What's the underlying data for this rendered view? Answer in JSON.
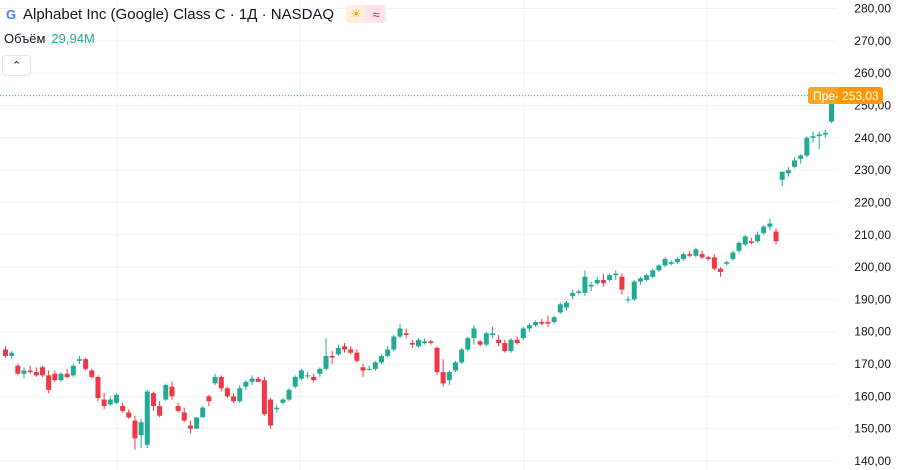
{
  "header": {
    "symbol_title": "Alphabet Inc (Google) Class C · 1Д · NASDAQ",
    "logo_letter": "G",
    "session_icon": "sun-icon",
    "mode_icon": "approx-icon"
  },
  "volume": {
    "label": "Объём",
    "value": "29,94M"
  },
  "collapse": {
    "icon": "chevron-up-icon"
  },
  "price_label": {
    "prefix": "Пре-",
    "value": "253,03"
  },
  "colors": {
    "up": "#22ab94",
    "down": "#f23645",
    "pre_tag": "#f5a623",
    "last_tag": "#ff9800",
    "grid": "#f0f3fa"
  },
  "chart_data": {
    "type": "candlestick",
    "interval": "1D",
    "ylim": [
      140,
      280
    ],
    "yticks": [
      "280,00",
      "270,00",
      "260,00",
      "250,00",
      "240,00",
      "230,00",
      "220,00",
      "210,00",
      "200,00",
      "190,00",
      "180,00",
      "170,00",
      "160,00",
      "150,00",
      "140,00"
    ],
    "last_price": 253.03,
    "candles": [
      [
        174.5,
        175.5,
        172,
        172.5
      ],
      [
        172.5,
        174,
        171.5,
        173.5
      ],
      [
        169.5,
        170,
        166.5,
        167
      ],
      [
        167,
        169,
        165.5,
        168
      ],
      [
        168,
        169.5,
        167,
        167.5
      ],
      [
        167.5,
        169,
        166,
        166.5
      ],
      [
        169,
        169.5,
        166,
        166.5
      ],
      [
        166.5,
        168,
        161,
        162
      ],
      [
        167,
        168,
        164.5,
        165
      ],
      [
        165,
        167.5,
        164.5,
        167
      ],
      [
        167,
        168.5,
        165.5,
        166
      ],
      [
        166.5,
        170,
        166,
        169.5
      ],
      [
        171,
        172.5,
        170,
        171.5
      ],
      [
        171.5,
        172,
        168,
        168.5
      ],
      [
        168,
        168.5,
        165.5,
        166
      ],
      [
        166,
        166.5,
        158.5,
        159.5
      ],
      [
        159,
        161,
        156,
        157
      ],
      [
        157.5,
        160,
        157,
        159
      ],
      [
        158,
        161,
        157.5,
        160.5
      ],
      [
        157,
        158,
        155,
        155.5
      ],
      [
        155,
        156,
        153,
        153.5
      ],
      [
        152.5,
        154,
        143.5,
        147
      ],
      [
        148,
        153,
        144,
        152
      ],
      [
        145,
        162,
        144,
        161.5
      ],
      [
        161,
        161.5,
        155.5,
        157
      ],
      [
        157,
        158.5,
        153.5,
        154
      ],
      [
        159,
        164,
        158.5,
        163.5
      ],
      [
        163,
        164.5,
        159,
        160
      ],
      [
        157,
        158,
        155,
        155.5
      ],
      [
        155,
        156.5,
        152,
        152.5
      ],
      [
        151,
        152.5,
        148.5,
        150
      ],
      [
        150,
        153.5,
        150,
        153.5
      ],
      [
        153.5,
        157,
        153.5,
        156.5
      ],
      [
        160,
        160.5,
        157,
        158.5
      ],
      [
        164,
        167,
        163.5,
        166
      ],
      [
        166,
        166.5,
        161.5,
        162.5
      ],
      [
        162.5,
        163,
        159.5,
        160
      ],
      [
        160,
        161,
        158,
        158.5
      ],
      [
        158.5,
        163.5,
        158,
        162.5
      ],
      [
        163,
        165,
        162,
        164.5
      ],
      [
        164.5,
        166.5,
        163.5,
        165.5
      ],
      [
        165.5,
        166,
        164.5,
        164.5
      ],
      [
        165,
        166,
        154,
        154.5
      ],
      [
        159,
        159.5,
        150,
        151
      ],
      [
        156,
        157.5,
        155,
        156.5
      ],
      [
        158,
        159.5,
        157.5,
        159
      ],
      [
        159,
        162.5,
        158.5,
        162
      ],
      [
        163,
        166.5,
        162.5,
        166
      ],
      [
        165.5,
        168.5,
        165,
        168
      ],
      [
        166.5,
        167.5,
        165.5,
        166.5
      ],
      [
        166,
        167,
        164.5,
        165
      ],
      [
        167,
        169,
        166,
        168.5
      ],
      [
        168.5,
        178,
        168,
        172.5
      ],
      [
        172.5,
        174,
        170,
        172
      ],
      [
        173,
        176,
        172.5,
        175
      ],
      [
        175.5,
        176.5,
        173.5,
        174.5
      ],
      [
        174.5,
        175.5,
        173,
        173.5
      ],
      [
        173.5,
        174.5,
        170.5,
        171
      ],
      [
        169,
        170,
        166,
        168
      ],
      [
        168.5,
        169.5,
        168,
        168.5
      ],
      [
        168.5,
        171,
        168,
        170.5
      ],
      [
        170.5,
        173,
        170,
        172.5
      ],
      [
        172.5,
        175.5,
        172,
        174.5
      ],
      [
        174.5,
        179,
        174,
        178.5
      ],
      [
        178.5,
        182.5,
        178,
        181
      ],
      [
        179.5,
        181,
        178,
        179
      ],
      [
        176.5,
        177.5,
        175,
        176
      ],
      [
        175.5,
        178,
        175,
        177.5
      ],
      [
        176.5,
        178,
        176,
        177
      ],
      [
        177,
        177.5,
        176,
        176.5
      ],
      [
        175,
        175.5,
        166.5,
        167.5
      ],
      [
        167.5,
        171.5,
        163,
        164
      ],
      [
        165,
        168,
        163.5,
        167.5
      ],
      [
        168,
        171,
        167.5,
        170.5
      ],
      [
        170.5,
        175,
        170,
        174.5
      ],
      [
        174.5,
        178.5,
        174,
        178
      ],
      [
        178,
        182,
        176,
        181
      ],
      [
        177,
        177.5,
        175.5,
        176
      ],
      [
        176,
        180,
        175.5,
        179.5
      ],
      [
        179,
        181.5,
        178,
        179.5
      ],
      [
        177.5,
        179,
        175.5,
        176.5
      ],
      [
        176.5,
        177.5,
        173.5,
        174
      ],
      [
        174,
        178,
        173.5,
        177.5
      ],
      [
        177.5,
        178.5,
        176,
        176.5
      ],
      [
        178,
        181.5,
        177.5,
        181
      ],
      [
        181,
        182.5,
        180,
        182
      ],
      [
        182,
        183.5,
        181.5,
        183
      ],
      [
        183,
        184,
        182,
        182.5
      ],
      [
        183,
        185,
        181.5,
        182.5
      ],
      [
        183,
        185,
        182.5,
        184.5
      ],
      [
        186,
        189,
        185.5,
        188.5
      ],
      [
        187.5,
        189.5,
        186.5,
        189
      ],
      [
        191,
        193,
        190,
        192
      ],
      [
        192,
        193,
        191.5,
        192.5
      ],
      [
        192,
        199,
        191,
        197
      ],
      [
        194,
        195.5,
        192.5,
        194.5
      ],
      [
        195,
        197,
        194.5,
        196
      ],
      [
        196,
        198,
        194,
        195
      ],
      [
        196,
        198,
        195.5,
        197.5
      ],
      [
        197.5,
        199,
        196,
        198
      ],
      [
        197,
        198,
        191.5,
        193
      ],
      [
        190,
        191,
        189,
        190
      ],
      [
        190,
        196,
        189.5,
        195.5
      ],
      [
        195.5,
        197,
        194.5,
        196.5
      ],
      [
        196,
        198,
        195.5,
        197.5
      ],
      [
        197,
        199.5,
        196.5,
        199
      ],
      [
        199,
        201,
        198.5,
        200.5
      ],
      [
        200.5,
        203,
        200,
        202.5
      ],
      [
        201,
        202,
        200.5,
        201.5
      ],
      [
        201.5,
        203,
        201,
        202.5
      ],
      [
        202.5,
        204.5,
        202,
        204
      ],
      [
        204,
        205,
        203,
        203.5
      ],
      [
        203.5,
        206,
        203,
        205.5
      ],
      [
        204,
        205,
        202.5,
        203
      ],
      [
        203,
        203.5,
        202,
        202.5
      ],
      [
        203,
        204,
        199,
        199.5
      ],
      [
        199.5,
        200,
        197,
        198.5
      ],
      [
        201,
        202,
        200.5,
        201.5
      ],
      [
        202.5,
        205,
        202,
        204.5
      ],
      [
        205,
        208,
        204.5,
        207.5
      ],
      [
        207,
        210,
        206.5,
        209.5
      ],
      [
        208,
        209,
        207,
        207.5
      ],
      [
        208,
        211,
        207.5,
        210
      ],
      [
        210.5,
        213,
        210,
        212.5
      ],
      [
        212.5,
        215,
        211.5,
        213.5
      ],
      [
        211,
        212,
        207,
        208
      ],
      [
        227,
        229,
        225,
        229.5
      ],
      [
        229,
        231,
        228,
        230
      ],
      [
        231,
        234,
        230.5,
        233
      ],
      [
        233.5,
        235,
        232,
        234.5
      ],
      [
        234.5,
        240.5,
        234,
        240
      ],
      [
        240,
        242,
        238.5,
        240.5
      ],
      [
        240.5,
        242,
        236.5,
        241
      ],
      [
        241,
        242.5,
        240,
        241.5
      ],
      [
        245,
        253.5,
        244.5,
        253.03
      ]
    ]
  }
}
